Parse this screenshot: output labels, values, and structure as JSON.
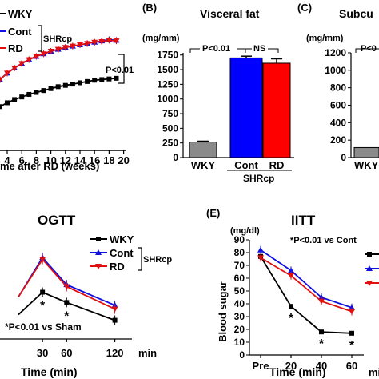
{
  "colors": {
    "wky": "#000000",
    "cont": "#1010e0",
    "rd": "#e01010",
    "bar_wky": "#8a8a8a",
    "bar_cont": "#0000ff",
    "bar_rd": "#ff0000"
  },
  "chart_data": [
    {
      "type": "line",
      "panel": "",
      "title": "",
      "xlabel": "me after RD (weeks)",
      "ylabel": "",
      "x_ticks": [
        "4",
        "6",
        "8",
        "10",
        "12",
        "14",
        "16",
        "18",
        "20"
      ],
      "xlim": [
        3,
        20
      ],
      "ylim": [
        0,
        10
      ],
      "legend": [
        "WKY",
        "Cont",
        "RD"
      ],
      "group_label": "SHRcp",
      "annotation": "P<0.01",
      "x": [
        3,
        4,
        5,
        6,
        7,
        8,
        9,
        10,
        11,
        12,
        13,
        14,
        15,
        16,
        17,
        18,
        19
      ],
      "series": [
        {
          "name": "WKY",
          "values": [
            3.4,
            3.7,
            3.95,
            4.15,
            4.35,
            4.5,
            4.65,
            4.8,
            4.95,
            5.05,
            5.15,
            5.25,
            5.35,
            5.45,
            5.5,
            5.55,
            5.6
          ]
        },
        {
          "name": "Cont",
          "values": [
            5.5,
            6.0,
            6.4,
            6.75,
            7.05,
            7.3,
            7.5,
            7.7,
            7.85,
            8.0,
            8.1,
            8.2,
            8.3,
            8.4,
            8.5,
            8.6,
            8.55
          ]
        },
        {
          "name": "RD",
          "values": [
            5.5,
            6.0,
            6.4,
            6.75,
            7.05,
            7.3,
            7.5,
            7.7,
            7.85,
            8.0,
            8.1,
            8.2,
            8.3,
            8.4,
            8.45,
            8.55,
            8.5
          ]
        }
      ]
    },
    {
      "type": "bar",
      "panel": "(B)",
      "title": "Visceral fat",
      "ylabel": "(mg/mm)",
      "y_ticks": [
        "0",
        "250",
        "500",
        "750",
        "1000",
        "1250",
        "1500",
        "1750"
      ],
      "ylim": [
        0,
        1750
      ],
      "categories": [
        "WKY",
        "Cont",
        "RD"
      ],
      "values": [
        265,
        1700,
        1610
      ],
      "errors": [
        15,
        30,
        75
      ],
      "group_label": "SHRcp",
      "annotations": [
        "P<0.01",
        "NS"
      ]
    },
    {
      "type": "bar",
      "panel": "(C)",
      "title": "Subcu",
      "ylabel": "(mg/mm)",
      "y_ticks": [
        "0",
        "200",
        "400",
        "600",
        "800",
        "1000",
        "1200"
      ],
      "ylim": [
        0,
        1200
      ],
      "categories": [
        "WKY"
      ],
      "values": [
        115
      ],
      "annotation": "P<0"
    },
    {
      "type": "line",
      "panel": "",
      "title": "OGTT",
      "xlabel": "Time (min)",
      "x_ticks": [
        "30",
        "60",
        "120"
      ],
      "x_unit": "min",
      "legend": [
        "WKY",
        "Cont",
        "RD"
      ],
      "group_label": "SHRcp",
      "annotation": "*P<0.01 vs Sham",
      "x": [
        0,
        30,
        60,
        120
      ],
      "ylim": [
        0,
        10
      ],
      "series": [
        {
          "name": "WKY",
          "values": [
            2.6,
            5.0,
            3.9,
            2.0
          ]
        },
        {
          "name": "Cont",
          "values": [
            4.5,
            8.7,
            5.8,
            3.6
          ]
        },
        {
          "name": "RD",
          "values": [
            4.5,
            8.5,
            5.6,
            3.2
          ]
        }
      ],
      "stars": [
        30,
        60
      ]
    },
    {
      "type": "line",
      "panel": "(E)",
      "title": "IITT",
      "ylabel": "Blood sugar",
      "yunit": "(mg/dl)",
      "xlabel": "Time (min)",
      "x_ticks": [
        "Pre",
        "20",
        "40",
        "60"
      ],
      "x_unit": "min",
      "y_ticks": [
        "0",
        "10",
        "20",
        "30",
        "40",
        "50",
        "60",
        "70",
        "80",
        "90"
      ],
      "ylim": [
        0,
        90
      ],
      "annotation": "*P<0.01 vs Cont",
      "x": [
        0,
        20,
        40,
        60
      ],
      "series": [
        {
          "name": "WKY",
          "values": [
            77,
            38,
            18,
            17
          ]
        },
        {
          "name": "Cont",
          "values": [
            82,
            66,
            45,
            37
          ]
        },
        {
          "name": "RD",
          "values": [
            76,
            62,
            42,
            34
          ]
        }
      ],
      "stars": [
        20,
        40,
        60
      ]
    }
  ]
}
